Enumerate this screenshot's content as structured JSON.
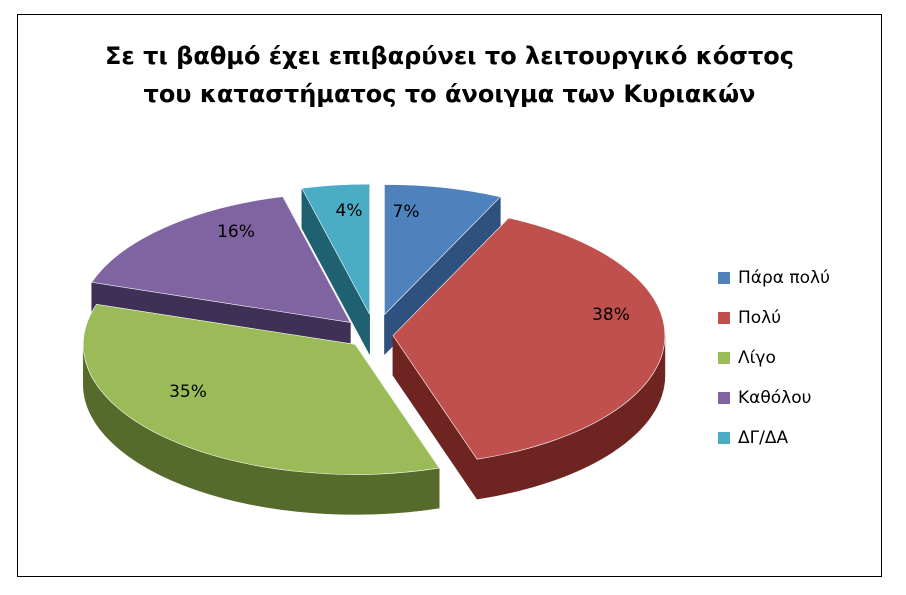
{
  "chart_data": {
    "type": "pie",
    "title_lines": [
      "Σε τι βαθμό έχει επιβαρύνει το λειτουργικό κόστος",
      "του καταστήματος το άνοιγμα των Κυριακών"
    ],
    "categories": [
      "Πάρα πολύ",
      "Πολύ",
      "Λίγο",
      "Καθόλου",
      "ΔΓ/ΔΑ"
    ],
    "values": [
      7,
      38,
      35,
      16,
      4
    ],
    "data_labels": [
      "7%",
      "38%",
      "35%",
      "16%",
      "4%"
    ],
    "colors": [
      "#4f81bd",
      "#c0504d",
      "#9bbb59",
      "#8064a2",
      "#4bacc6"
    ],
    "side_colors": [
      "#2f5180",
      "#6e2522",
      "#566b2b",
      "#3f3156",
      "#1f6071"
    ],
    "legend_position": "right",
    "style": "3d-exploded"
  }
}
